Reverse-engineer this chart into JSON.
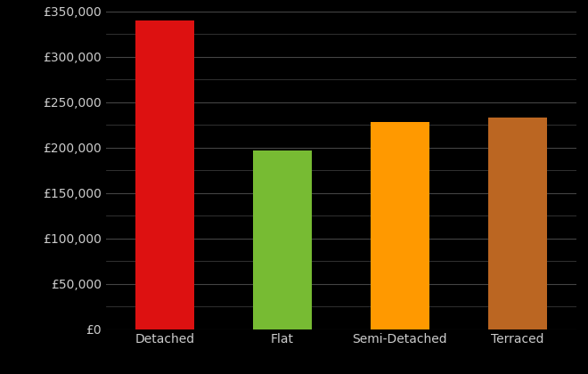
{
  "categories": [
    "Detached",
    "Flat",
    "Semi-Detached",
    "Terraced"
  ],
  "values": [
    340000,
    197000,
    228000,
    233000
  ],
  "bar_colors": [
    "#dd1111",
    "#77bb33",
    "#ff9900",
    "#bb6622"
  ],
  "background_color": "#000000",
  "text_color": "#cccccc",
  "grid_color": "#444444",
  "ylim": [
    0,
    350000
  ],
  "yticks": [
    0,
    50000,
    100000,
    150000,
    200000,
    250000,
    300000,
    350000
  ],
  "tick_fontsize": 10,
  "label_fontsize": 10,
  "bar_width": 0.5,
  "minor_grid_interval": 25000
}
